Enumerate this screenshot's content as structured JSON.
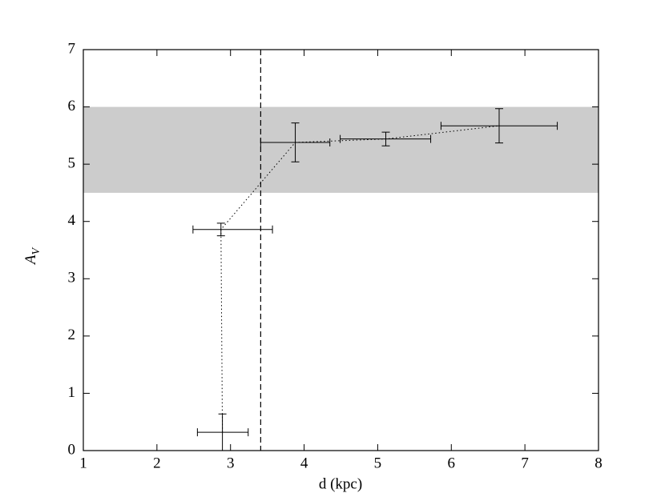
{
  "chart_data": {
    "type": "errorbar",
    "x_label": "d (kpc)",
    "y_label": {
      "main": "A",
      "sub": "V"
    },
    "x": [
      2.89,
      2.87,
      3.88,
      5.11,
      6.65
    ],
    "xerr_minus": [
      0.34,
      0.38,
      0.47,
      0.62,
      0.79
    ],
    "xerr_plus": [
      0.35,
      0.7,
      0.47,
      0.61,
      0.79
    ],
    "values": [
      0.32,
      3.86,
      5.38,
      5.44,
      5.67
    ],
    "yerr": [
      0.32,
      0.11,
      0.34,
      0.12,
      0.3
    ],
    "color": "#000000",
    "band": [
      4.5,
      6.0
    ],
    "band_color": "#cccccc",
    "vline_x": 3.41,
    "xlim": [
      1,
      8
    ],
    "xticks": [
      1,
      2,
      3,
      4,
      5,
      6,
      7,
      8
    ],
    "ylim": [
      0,
      7
    ],
    "yticks": [
      0,
      1,
      2,
      3,
      4,
      5,
      6,
      7
    ]
  }
}
